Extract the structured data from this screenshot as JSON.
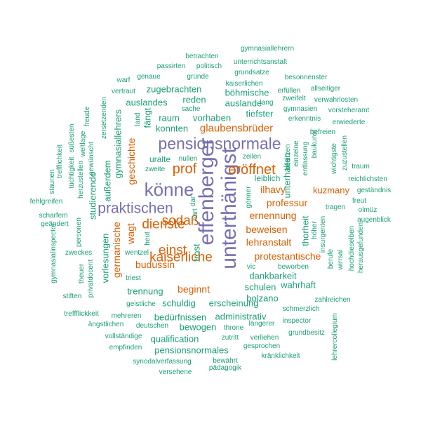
{
  "colors": {
    "purple": "#7570B3",
    "orange": "#D95F02",
    "teal": "#1B9E77"
  },
  "words": [
    {
      "text": "unterthänigst",
      "color": "purple",
      "vertical": true
    },
    {
      "text": "effenberger",
      "color": "purple",
      "vertical": true
    },
    {
      "text": "pensionsnormale",
      "color": "purple",
      "vertical": false
    },
    {
      "text": "könne",
      "color": "purple",
      "vertical": false
    },
    {
      "text": "praktischen",
      "color": "purple",
      "vertical": false
    },
    {
      "text": "eröffnet",
      "color": "orange",
      "vertical": false
    },
    {
      "text": "prof",
      "color": "orange",
      "vertical": false
    },
    {
      "text": "sodaß",
      "color": "orange",
      "vertical": false
    },
    {
      "text": "dienste",
      "color": "orange",
      "vertical": false
    },
    {
      "text": "kaiserliche",
      "color": "orange",
      "vertical": false
    },
    {
      "text": "einst",
      "color": "orange",
      "vertical": false
    },
    {
      "text": "glaubensbrüder",
      "color": "orange",
      "vertical": false
    },
    {
      "text": "professur",
      "color": "orange",
      "vertical": false
    },
    {
      "text": "ernennung",
      "color": "orange",
      "vertical": false
    },
    {
      "text": "beweisen",
      "color": "orange",
      "vertical": false
    },
    {
      "text": "lehranstalt",
      "color": "orange",
      "vertical": false
    },
    {
      "text": "protestantische",
      "color": "orange",
      "vertical": false
    },
    {
      "text": "budussin",
      "color": "orange",
      "vertical": false
    },
    {
      "text": "beginnt",
      "color": "orange",
      "vertical": false
    },
    {
      "text": "ilhavy",
      "color": "orange",
      "vertical": false
    },
    {
      "text": "kuzmany",
      "color": "orange",
      "vertical": false
    },
    {
      "text": "geschichte",
      "color": "orange",
      "vertical": true
    },
    {
      "text": "germanische",
      "color": "orange",
      "vertical": true
    },
    {
      "text": "wagt",
      "color": "orange",
      "vertical": true
    },
    {
      "text": "zugebrachten",
      "color": "teal",
      "vertical": false
    },
    {
      "text": "böhmische",
      "color": "teal",
      "vertical": false
    },
    {
      "text": "auslandes",
      "color": "teal",
      "vertical": false
    },
    {
      "text": "reden",
      "color": "teal",
      "vertical": false
    },
    {
      "text": "auslande",
      "color": "teal",
      "vertical": false
    },
    {
      "text": "tiefster",
      "color": "teal",
      "vertical": false
    },
    {
      "text": "raum",
      "color": "teal",
      "vertical": false
    },
    {
      "text": "vorhaben",
      "color": "teal",
      "vertical": false
    },
    {
      "text": "konnten",
      "color": "teal",
      "vertical": false
    },
    {
      "text": "uralte",
      "color": "teal",
      "vertical": false
    },
    {
      "text": "leiblich",
      "color": "teal",
      "vertical": false
    },
    {
      "text": "dankbarkeit",
      "color": "teal",
      "vertical": false
    },
    {
      "text": "schulen",
      "color": "teal",
      "vertical": false
    },
    {
      "text": "wahrhaft",
      "color": "teal",
      "vertical": false
    },
    {
      "text": "bolzano",
      "color": "teal",
      "vertical": false
    },
    {
      "text": "vorlesungen",
      "color": "teal",
      "vertical": true
    },
    {
      "text": "trennung",
      "color": "teal",
      "vertical": false
    },
    {
      "text": "schuldig",
      "color": "teal",
      "vertical": false
    },
    {
      "text": "erscheinung",
      "color": "teal",
      "vertical": false
    },
    {
      "text": "bedürfnissen",
      "color": "teal",
      "vertical": false
    },
    {
      "text": "administrativ",
      "color": "teal",
      "vertical": false
    },
    {
      "text": "qualification",
      "color": "teal",
      "vertical": false
    },
    {
      "text": "bewogen",
      "color": "teal",
      "vertical": false
    },
    {
      "text": "pensionsnormales",
      "color": "teal",
      "vertical": false
    },
    {
      "text": "studierende",
      "color": "teal",
      "vertical": true
    },
    {
      "text": "gymnasiallehrern",
      "color": "teal",
      "vertical": false
    },
    {
      "text": "betrachten",
      "color": "teal",
      "vertical": false
    },
    {
      "text": "unterrichtsanstalt",
      "color": "teal",
      "vertical": false
    },
    {
      "text": "passirten",
      "color": "teal",
      "vertical": false
    },
    {
      "text": "politisch",
      "color": "teal",
      "vertical": false
    },
    {
      "text": "grundsatze",
      "color": "teal",
      "vertical": false
    },
    {
      "text": "warf",
      "color": "teal",
      "vertical": false
    },
    {
      "text": "genaue",
      "color": "teal",
      "vertical": false
    },
    {
      "text": "gründe",
      "color": "teal",
      "vertical": false
    },
    {
      "text": "besonnenster",
      "color": "teal",
      "vertical": false
    },
    {
      "text": "kaiserlichen",
      "color": "teal",
      "vertical": false
    },
    {
      "text": "allseitiger",
      "color": "teal",
      "vertical": false
    },
    {
      "text": "vertraut",
      "color": "teal",
      "vertical": false
    },
    {
      "text": "erfüllen",
      "color": "teal",
      "vertical": false
    },
    {
      "text": "zweifelt",
      "color": "teal",
      "vertical": false
    },
    {
      "text": "verwahrlosten",
      "color": "teal",
      "vertical": false
    },
    {
      "text": "lang",
      "color": "teal",
      "vertical": false
    },
    {
      "text": "sache",
      "color": "teal",
      "vertical": false
    },
    {
      "text": "gymnasien",
      "color": "teal",
      "vertical": false
    },
    {
      "text": "vorsteheramt",
      "color": "teal",
      "vertical": false
    },
    {
      "text": "erkenntnis",
      "color": "teal",
      "vertical": false
    },
    {
      "text": "erwiederte",
      "color": "teal",
      "vertical": false
    },
    {
      "text": "befreien",
      "color": "teal",
      "vertical": false
    },
    {
      "text": "fängt",
      "color": "teal",
      "vertical": true
    },
    {
      "text": "land",
      "color": "teal",
      "vertical": true
    },
    {
      "text": "heut",
      "color": "teal",
      "vertical": true
    },
    {
      "text": "zersetzenden",
      "color": "teal",
      "vertical": true
    },
    {
      "text": "gymnasiallehrers",
      "color": "teal",
      "vertical": true
    },
    {
      "text": "freude",
      "color": "teal",
      "vertical": true
    },
    {
      "text": "weltlage",
      "color": "teal",
      "vertical": true
    },
    {
      "text": "süßesten",
      "color": "teal",
      "vertical": true
    },
    {
      "text": "gewünscht",
      "color": "teal",
      "vertical": true
    },
    {
      "text": "tüchtigkeit",
      "color": "teal",
      "vertical": true
    },
    {
      "text": "trefflichkeit",
      "color": "teal",
      "vertical": true
    },
    {
      "text": "staunen",
      "color": "teal",
      "vertical": true
    },
    {
      "text": "herzustellen",
      "color": "teal",
      "vertical": true
    },
    {
      "text": "außerdem",
      "color": "teal",
      "vertical": true
    },
    {
      "text": "zweite",
      "color": "teal",
      "vertical": false
    },
    {
      "text": "nullen",
      "color": "teal",
      "vertical": false
    },
    {
      "text": "zeilen",
      "color": "teal",
      "vertical": false
    },
    {
      "text": "besitzen",
      "color": "teal",
      "vertical": true
    },
    {
      "text": "einzelne",
      "color": "teal",
      "vertical": true
    },
    {
      "text": "unterhalten",
      "color": "teal",
      "vertical": true
    },
    {
      "text": "entlassung",
      "color": "teal",
      "vertical": true
    },
    {
      "text": "baukunst",
      "color": "teal",
      "vertical": true
    },
    {
      "text": "wichtigste",
      "color": "teal",
      "vertical": true
    },
    {
      "text": "zuzustellen",
      "color": "teal",
      "vertical": true
    },
    {
      "text": "traum",
      "color": "teal",
      "vertical": false
    },
    {
      "text": "reichlichsten",
      "color": "teal",
      "vertical": false
    },
    {
      "text": "geständnis",
      "color": "teal",
      "vertical": false
    },
    {
      "text": "freut",
      "color": "teal",
      "vertical": false
    },
    {
      "text": "olmüz",
      "color": "teal",
      "vertical": false
    },
    {
      "text": "tragen",
      "color": "teal",
      "vertical": false
    },
    {
      "text": "augenblick",
      "color": "teal",
      "vertical": false
    },
    {
      "text": "fehlgreifen",
      "color": "teal",
      "vertical": false
    },
    {
      "text": "scharfem",
      "color": "teal",
      "vertical": false
    },
    {
      "text": "geändert",
      "color": "teal",
      "vertical": false
    },
    {
      "text": "gymnasialinspector",
      "color": "teal",
      "vertical": true
    },
    {
      "text": "zweckes",
      "color": "teal",
      "vertical": false
    },
    {
      "text": "theuer",
      "color": "teal",
      "vertical": true
    },
    {
      "text": "privatdocent",
      "color": "teal",
      "vertical": true
    },
    {
      "text": "personen",
      "color": "teal",
      "vertical": true
    },
    {
      "text": "stiften",
      "color": "teal",
      "vertical": false
    },
    {
      "text": "hart",
      "color": "teal",
      "vertical": true
    },
    {
      "text": "trost",
      "color": "teal",
      "vertical": true
    },
    {
      "text": "dar",
      "color": "teal",
      "vertical": true
    },
    {
      "text": "gönner",
      "color": "teal",
      "vertical": true
    },
    {
      "text": "thorheit",
      "color": "teal",
      "vertical": true
    },
    {
      "text": "höher",
      "color": "teal",
      "vertical": true
    },
    {
      "text": "insurgenten",
      "color": "teal",
      "vertical": true
    },
    {
      "text": "berufe",
      "color": "teal",
      "vertical": true
    },
    {
      "text": "wirrsal",
      "color": "teal",
      "vertical": true
    },
    {
      "text": "hochdieselben",
      "color": "teal",
      "vertical": true
    },
    {
      "text": "herausgefunden",
      "color": "teal",
      "vertical": true
    },
    {
      "text": "lehrercollegium",
      "color": "teal",
      "vertical": true
    },
    {
      "text": "wentzel",
      "color": "teal",
      "vertical": false
    },
    {
      "text": "triest",
      "color": "teal",
      "vertical": false
    },
    {
      "text": "vic",
      "color": "teal",
      "vertical": false
    },
    {
      "text": "beworben",
      "color": "teal",
      "vertical": false
    },
    {
      "text": "geistliche",
      "color": "teal",
      "vertical": false
    },
    {
      "text": "zahlreichen",
      "color": "teal",
      "vertical": false
    },
    {
      "text": "schmerzlich",
      "color": "teal",
      "vertical": false
    },
    {
      "text": "treffflickkeit",
      "color": "teal",
      "vertical": false
    },
    {
      "text": "mehreren",
      "color": "teal",
      "vertical": false
    },
    {
      "text": "ängstlichen",
      "color": "teal",
      "vertical": false
    },
    {
      "text": "deutschen",
      "color": "teal",
      "vertical": false
    },
    {
      "text": "längerer",
      "color": "teal",
      "vertical": false
    },
    {
      "text": "inspector",
      "color": "teal",
      "vertical": false
    },
    {
      "text": "throne",
      "color": "teal",
      "vertical": false
    },
    {
      "text": "grundbesitz",
      "color": "teal",
      "vertical": false
    },
    {
      "text": "vollständige",
      "color": "teal",
      "vertical": false
    },
    {
      "text": "zutritt",
      "color": "teal",
      "vertical": false
    },
    {
      "text": "verliehen",
      "color": "teal",
      "vertical": false
    },
    {
      "text": "empfinden",
      "color": "teal",
      "vertical": false
    },
    {
      "text": "gesprochen",
      "color": "teal",
      "vertical": false
    },
    {
      "text": "kränklichkeit",
      "color": "teal",
      "vertical": false
    },
    {
      "text": "synodalverfassung",
      "color": "teal",
      "vertical": false
    },
    {
      "text": "bewährt",
      "color": "teal",
      "vertical": false
    },
    {
      "text": "pädagogik",
      "color": "teal",
      "vertical": false
    },
    {
      "text": "versehene",
      "color": "teal",
      "vertical": false
    }
  ]
}
